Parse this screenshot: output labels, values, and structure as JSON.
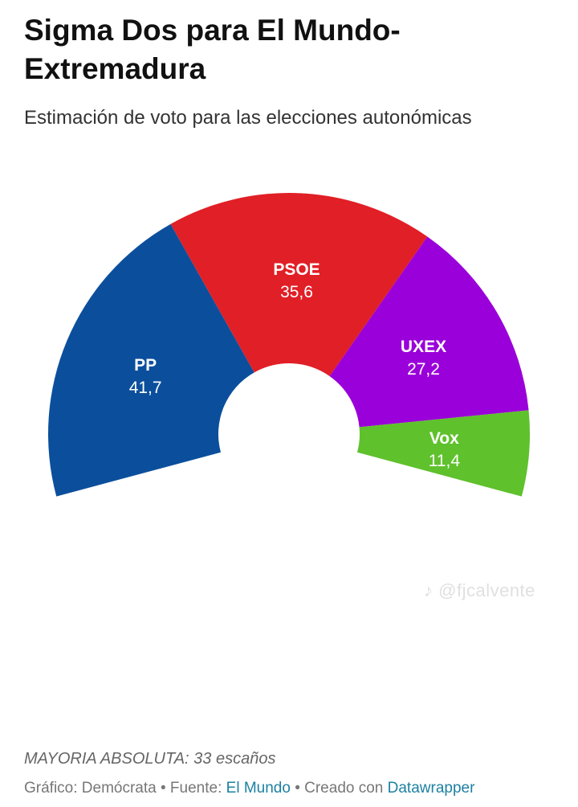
{
  "header": {
    "title": "Sigma Dos para El Mundo-Extremadura",
    "subtitle": "Estimación de voto para las elecciones autonómicas"
  },
  "chart_data": {
    "type": "pie",
    "variant": "semicircle-donut",
    "title": "Sigma Dos para El Mundo-Extremadura",
    "subtitle": "Estimación de voto para las elecciones autonómicas",
    "series": [
      {
        "name": "PP",
        "value": 41.7,
        "label": "41,7",
        "color": "#0b4f9c"
      },
      {
        "name": "PSOE",
        "value": 35.6,
        "label": "35,6",
        "color": "#e11f26"
      },
      {
        "name": "UXEX",
        "value": 27.2,
        "label": "27,2",
        "color": "#9a00d9"
      },
      {
        "name": "Vox",
        "value": 11.4,
        "label": "11,4",
        "color": "#5fc12c"
      }
    ]
  },
  "watermark": "@fjcalvente",
  "footer": {
    "note": "MAYORIA ABSOLUTA: 33 escaños",
    "credits": {
      "prefix": "Gráfico: Demócrata • Fuente: ",
      "source": "El Mundo",
      "middle": " • Creado con ",
      "tool": "Datawrapper"
    }
  }
}
